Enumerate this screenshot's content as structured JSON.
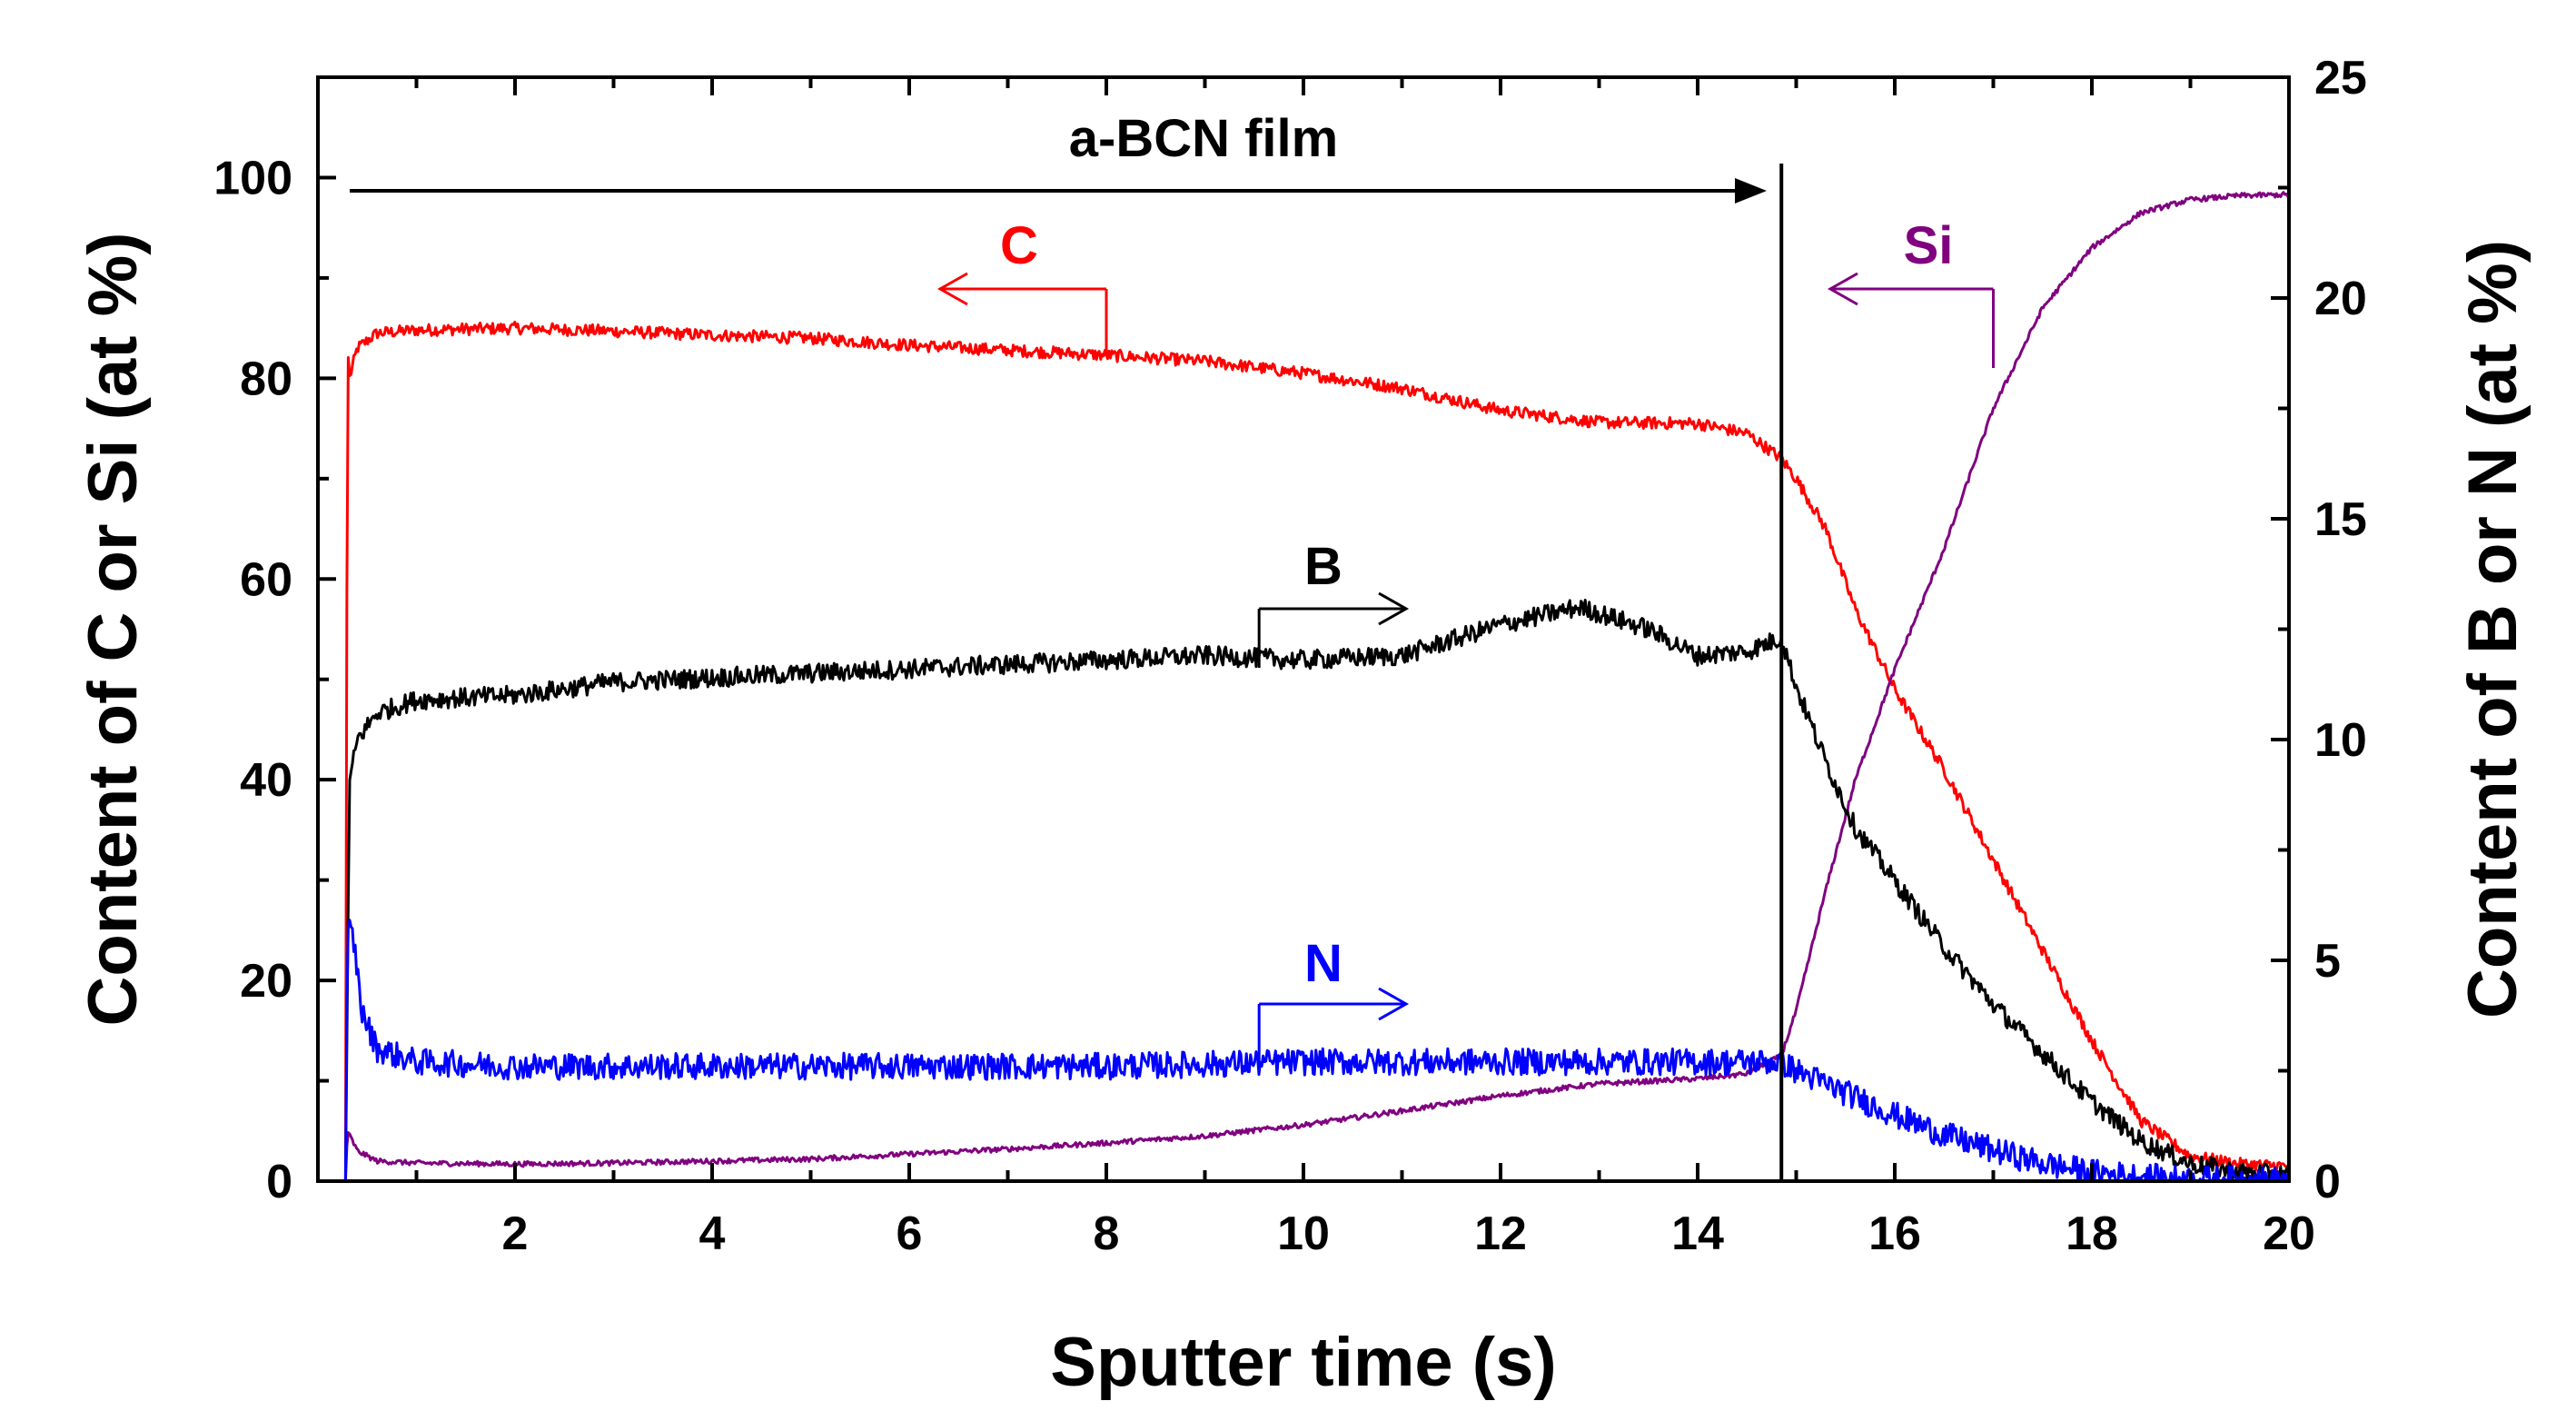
{
  "chart_data": {
    "type": "line",
    "title": "",
    "xlabel": "Sputter time (s)",
    "ylabel_left": "Content of C or Si (at %)",
    "ylabel_right": "Content of B or N (at %)",
    "xlim": [
      0,
      20
    ],
    "ylim_left": [
      0,
      110
    ],
    "ylim_right": [
      0,
      25
    ],
    "x_ticks": [
      2,
      4,
      6,
      8,
      10,
      12,
      14,
      16,
      18,
      20
    ],
    "y_left_ticks": [
      0,
      20,
      40,
      60,
      80,
      100
    ],
    "y_right_ticks": [
      0,
      5,
      10,
      15,
      20,
      25
    ],
    "grid": false,
    "colors": {
      "C": "#ff0000",
      "Si": "#800080",
      "B": "#000000",
      "N": "#0000ff",
      "axis": "#000000"
    },
    "film_boundary_x": 14.85,
    "annotations": {
      "film_label": "a-BCN film",
      "C_label": "C",
      "Si_label": "Si",
      "B_label": "B",
      "N_label": "N"
    },
    "series": [
      {
        "name": "C",
        "axis": "left",
        "color": "#ff0000",
        "noise": 0.6,
        "points": [
          [
            0.28,
            0
          ],
          [
            0.3,
            83.5
          ],
          [
            0.32,
            80
          ],
          [
            0.4,
            83
          ],
          [
            0.6,
            84.5
          ],
          [
            1,
            84.8
          ],
          [
            2,
            85
          ],
          [
            3,
            84.7
          ],
          [
            4,
            84.3
          ],
          [
            5,
            84
          ],
          [
            6,
            83.3
          ],
          [
            7,
            82.8
          ],
          [
            8,
            82.3
          ],
          [
            9,
            81.7
          ],
          [
            10,
            80.5
          ],
          [
            11,
            79
          ],
          [
            12,
            76.8
          ],
          [
            13,
            75.6
          ],
          [
            14,
            75.5
          ],
          [
            14.5,
            74.5
          ],
          [
            14.85,
            72
          ],
          [
            15,
            70
          ],
          [
            15.3,
            65
          ],
          [
            15.6,
            57
          ],
          [
            16,
            49
          ],
          [
            16.5,
            41
          ],
          [
            17,
            32
          ],
          [
            17.5,
            23
          ],
          [
            18,
            14
          ],
          [
            18.5,
            6
          ],
          [
            19,
            2.5
          ],
          [
            19.5,
            1.7
          ],
          [
            20,
            1.5
          ]
        ]
      },
      {
        "name": "Si",
        "axis": "left",
        "color": "#800080",
        "noise": 0.25,
        "points": [
          [
            0.28,
            0
          ],
          [
            0.3,
            5
          ],
          [
            0.4,
            3
          ],
          [
            0.6,
            2
          ],
          [
            1,
            1.8
          ],
          [
            2,
            1.7
          ],
          [
            3,
            1.8
          ],
          [
            4,
            2
          ],
          [
            5,
            2.2
          ],
          [
            6,
            2.7
          ],
          [
            7,
            3.2
          ],
          [
            8,
            3.8
          ],
          [
            9,
            4.5
          ],
          [
            10,
            5.6
          ],
          [
            11,
            7
          ],
          [
            12,
            8.5
          ],
          [
            13,
            9.7
          ],
          [
            14,
            10.2
          ],
          [
            14.5,
            10.7
          ],
          [
            14.85,
            12.5
          ],
          [
            15,
            17
          ],
          [
            15.3,
            29
          ],
          [
            15.6,
            40
          ],
          [
            16,
            51
          ],
          [
            16.5,
            63
          ],
          [
            17,
            77
          ],
          [
            17.5,
            87
          ],
          [
            18,
            93
          ],
          [
            18.5,
            96.5
          ],
          [
            19,
            97.8
          ],
          [
            19.5,
            98.2
          ],
          [
            20,
            98.3
          ]
        ]
      },
      {
        "name": "B",
        "axis": "right",
        "color": "#000000",
        "noise": 0.22,
        "points": [
          [
            0.28,
            0
          ],
          [
            0.32,
            9
          ],
          [
            0.4,
            10
          ],
          [
            0.6,
            10.6
          ],
          [
            1,
            10.9
          ],
          [
            2,
            11
          ],
          [
            3,
            11.3
          ],
          [
            4,
            11.4
          ],
          [
            5,
            11.5
          ],
          [
            6,
            11.6
          ],
          [
            7,
            11.7
          ],
          [
            8,
            11.8
          ],
          [
            9,
            11.9
          ],
          [
            10,
            11.8
          ],
          [
            11,
            11.9
          ],
          [
            12,
            12.6
          ],
          [
            12.8,
            13
          ],
          [
            13.5,
            12.5
          ],
          [
            14,
            11.9
          ],
          [
            14.5,
            12
          ],
          [
            14.85,
            12.3
          ],
          [
            15,
            11.2
          ],
          [
            15.3,
            9.5
          ],
          [
            15.6,
            8
          ],
          [
            16,
            6.8
          ],
          [
            16.5,
            5.3
          ],
          [
            17,
            4
          ],
          [
            17.5,
            2.9
          ],
          [
            18,
            1.8
          ],
          [
            18.5,
            0.9
          ],
          [
            19,
            0.4
          ],
          [
            19.5,
            0.2
          ],
          [
            20,
            0.15
          ]
        ]
      },
      {
        "name": "N",
        "axis": "right",
        "color": "#0000ff",
        "noise": 0.3,
        "points": [
          [
            0.28,
            0
          ],
          [
            0.3,
            5.8
          ],
          [
            0.36,
            5.5
          ],
          [
            0.45,
            3.8
          ],
          [
            0.6,
            3
          ],
          [
            1,
            2.7
          ],
          [
            2,
            2.6
          ],
          [
            4,
            2.6
          ],
          [
            6,
            2.6
          ],
          [
            8,
            2.6
          ],
          [
            10,
            2.7
          ],
          [
            12,
            2.7
          ],
          [
            14,
            2.7
          ],
          [
            14.85,
            2.7
          ],
          [
            15,
            2.5
          ],
          [
            15.5,
            2
          ],
          [
            16,
            1.5
          ],
          [
            16.5,
            1.05
          ],
          [
            17,
            0.7
          ],
          [
            17.5,
            0.4
          ],
          [
            18,
            0.2
          ],
          [
            18.5,
            0.1
          ],
          [
            19,
            0.05
          ],
          [
            20,
            0.03
          ]
        ]
      }
    ]
  }
}
